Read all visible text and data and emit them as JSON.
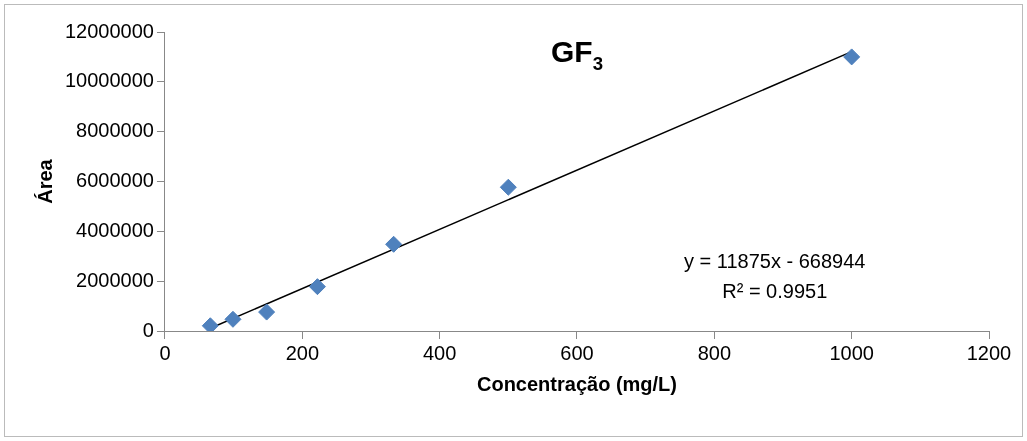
{
  "chart_data": {
    "type": "scatter",
    "title": "GF$_{3}$",
    "xlabel": "Concentração (mg/L)",
    "ylabel": "Área",
    "xlim": [
      0,
      1200
    ],
    "xticks": [
      0,
      200,
      400,
      600,
      800,
      1000,
      1200
    ],
    "ylim": [
      0,
      12000000
    ],
    "yticks": [
      0,
      2000000,
      4000000,
      6000000,
      8000000,
      10000000,
      12000000
    ],
    "grid": false,
    "legend": false,
    "marker": "diamond",
    "series": [
      {
        "type": "scatter",
        "color": "#4f81bd",
        "x": [
          66,
          99,
          148,
          222,
          333,
          500,
          1000
        ],
        "values": [
          210000,
          470000,
          760000,
          1780000,
          3480000,
          5770000,
          11000000
        ]
      },
      {
        "type": "line",
        "color": "#000000",
        "marker": "none",
        "x": [
          66,
          1000
        ],
        "values": [
          110000,
          11210000
        ]
      }
    ],
    "annotations": [
      "y = 11875x - 668944",
      "R² = 0.9951"
    ]
  }
}
